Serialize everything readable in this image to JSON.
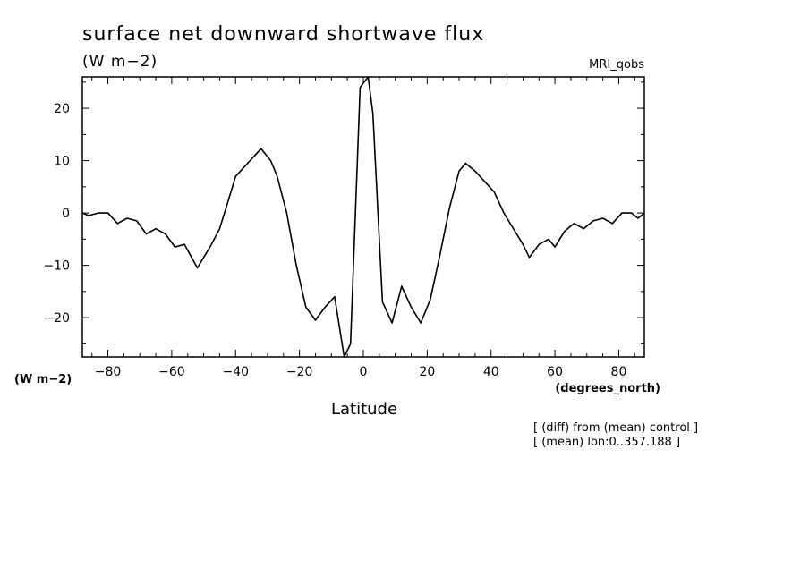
{
  "header": {
    "title": "surface net downward shortwave flux",
    "units": "(W m−2)",
    "dataset": "MRI_qobs"
  },
  "footer": {
    "note1": "[ (diff) from (mean) control ]",
    "note2": "[ (mean) lon:0..357.188 ]"
  },
  "chart_data": {
    "type": "line",
    "title": "surface net downward shortwave flux",
    "ylabel": "(W m−2)",
    "xlabel": "Latitude",
    "xunits": "(degrees_north)",
    "xlim": [
      -88,
      88
    ],
    "ylim": [
      -27.5,
      26
    ],
    "xticks": [
      -80,
      -60,
      -40,
      -20,
      0,
      20,
      40,
      60,
      80
    ],
    "yticks": [
      -20,
      -10,
      0,
      10,
      20
    ],
    "grid": false,
    "series": [
      {
        "x": [
          -88,
          -86,
          -83,
          -80,
          -77,
          -74,
          -71,
          -68,
          -65,
          -62,
          -59,
          -56,
          -52,
          -48,
          -45,
          -43,
          -40,
          -37,
          -34,
          -32,
          -29,
          -27,
          -24,
          -21,
          -18,
          -15,
          -12,
          -9,
          -6,
          -4,
          -1,
          1.5,
          3,
          6,
          9,
          12,
          15,
          18,
          21,
          24,
          27,
          30,
          32,
          35,
          38,
          41,
          44,
          47,
          50,
          52,
          55,
          58,
          60,
          63,
          66,
          69,
          72,
          75,
          78,
          81,
          84,
          86,
          88
        ],
        "y": [
          0,
          -0.5,
          0,
          0,
          -2,
          -1,
          -1.5,
          -4,
          -3,
          -4,
          -6.5,
          -6,
          -10.5,
          -6.5,
          -3,
          1,
          7,
          9,
          11,
          12.3,
          10,
          7,
          0,
          -10,
          -18,
          -20.5,
          -18,
          -16,
          -27.5,
          -25,
          24,
          26,
          19,
          -17,
          -21,
          -14,
          -18,
          -21,
          -16.5,
          -8,
          1,
          8,
          9.5,
          8,
          6,
          4,
          0,
          -3,
          -6,
          -8.5,
          -6,
          -5,
          -6.5,
          -3.5,
          -2,
          -3,
          -1.5,
          -1,
          -2,
          0,
          0,
          -1,
          0
        ]
      }
    ]
  }
}
